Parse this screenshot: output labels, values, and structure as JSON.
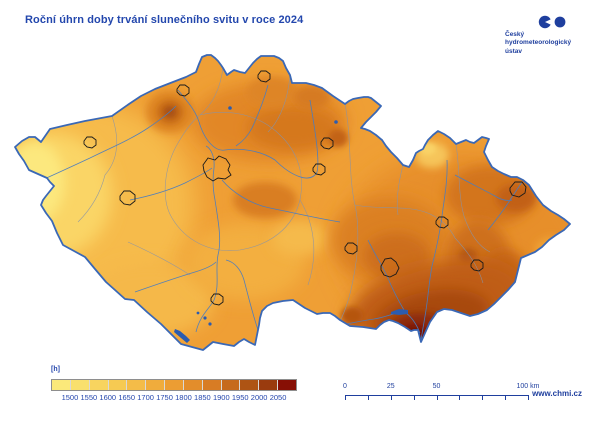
{
  "header": {
    "title": "Roční úhrn doby trvání slunečního svitu v roce 2024"
  },
  "logo": {
    "icon": "chmi-two-discs-logo",
    "lines": [
      "Český",
      "hydrometeorologický",
      "ústav"
    ]
  },
  "legend": {
    "unit": "[h]",
    "ticks": [
      "1500",
      "1550",
      "1600",
      "1650",
      "1700",
      "1750",
      "1800",
      "1850",
      "1900",
      "1950",
      "2000",
      "2050"
    ],
    "colors": [
      "#FBE97A",
      "#F9E06D",
      "#F8D45F",
      "#F6CA52",
      "#F4BC48",
      "#F0AC3C",
      "#EC9D33",
      "#E38D2B",
      "#D87C24",
      "#C66A1D",
      "#AE5414",
      "#9A3B0E",
      "#870F05"
    ]
  },
  "scalebar": {
    "labels": [
      {
        "text": "0",
        "at": 0
      },
      {
        "text": "25",
        "at": 0.25
      },
      {
        "text": "50",
        "at": 0.5
      },
      {
        "text": "100 km",
        "at": 1
      }
    ]
  },
  "footer": {
    "website": "www.chmi.cz"
  },
  "colors": {
    "accent_blue": "#2347ad",
    "map_border": "#3a68b6",
    "water": "#2b5cb0",
    "base_fill": "#EF9F35"
  }
}
